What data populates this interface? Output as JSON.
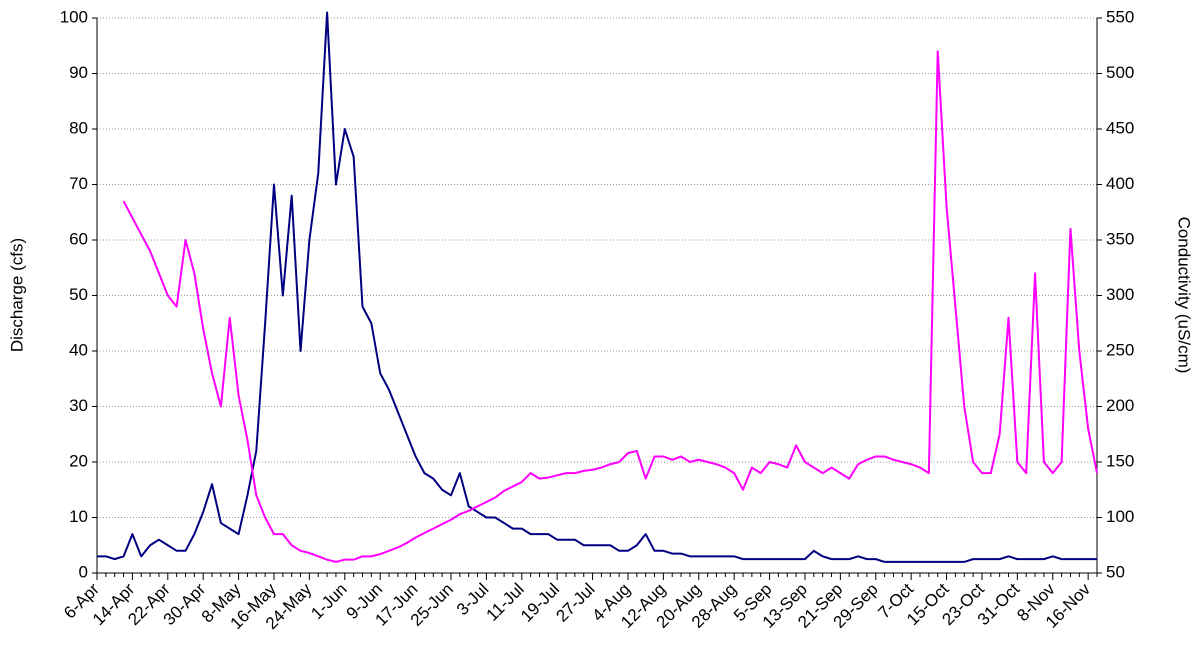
{
  "chart_data": {
    "type": "line",
    "y_label": "Discharge (cfs)",
    "y2_label": "Conductivity (uS/cm)",
    "categories": [
      "6-Apr",
      null,
      null,
      null,
      "14-Apr",
      null,
      null,
      null,
      "22-Apr",
      null,
      null,
      null,
      "30-Apr",
      null,
      null,
      null,
      "8-May",
      null,
      null,
      null,
      "16-May",
      null,
      null,
      null,
      "24-May",
      null,
      null,
      null,
      "1-Jun",
      null,
      null,
      null,
      "9-Jun",
      null,
      null,
      null,
      "17-Jun",
      null,
      null,
      null,
      "25-Jun",
      null,
      null,
      null,
      "3-Jul",
      null,
      null,
      null,
      "11-Jul",
      null,
      null,
      null,
      "19-Jul",
      null,
      null,
      null,
      "27-Jul",
      null,
      null,
      null,
      "4-Aug",
      null,
      null,
      null,
      "12-Aug",
      null,
      null,
      null,
      "20-Aug",
      null,
      null,
      null,
      "28-Aug",
      null,
      null,
      null,
      "5-Sep",
      null,
      null,
      null,
      "13-Sep",
      null,
      null,
      null,
      "21-Sep",
      null,
      null,
      null,
      "29-Sep",
      null,
      null,
      null,
      "7-Oct",
      null,
      null,
      null,
      "15-Oct",
      null,
      null,
      null,
      "23-Oct",
      null,
      null,
      null,
      "31-Oct",
      null,
      null,
      null,
      "8-Nov",
      null,
      null,
      null,
      "16-Nov",
      null
    ],
    "series": [
      {
        "name": "Discharge",
        "color": "#000080",
        "axis": "y",
        "values": [
          3,
          3,
          2.5,
          3,
          7,
          3,
          5,
          6,
          5,
          4,
          4,
          7,
          11,
          16,
          9,
          8,
          7,
          14,
          22,
          45,
          70,
          50,
          68,
          40,
          60,
          72,
          101,
          70,
          80,
          75,
          48,
          45,
          36,
          33,
          29,
          25,
          21,
          18,
          17,
          15,
          14,
          18,
          12,
          11,
          10,
          10,
          9,
          8,
          8,
          7,
          7,
          7,
          6,
          6,
          6,
          5,
          5,
          5,
          5,
          4,
          4,
          5,
          7,
          4,
          4,
          3.5,
          3.5,
          3,
          3,
          3,
          3,
          3,
          3,
          2.5,
          2.5,
          2.5,
          2.5,
          2.5,
          2.5,
          2.5,
          2.5,
          4,
          3,
          2.5,
          2.5,
          2.5,
          3,
          2.5,
          2.5,
          2,
          2,
          2,
          2,
          2,
          2,
          2,
          2,
          2,
          2,
          2.5,
          2.5,
          2.5,
          2.5,
          3,
          2.5,
          2.5,
          2.5,
          2.5,
          3,
          2.5,
          2.5,
          2.5,
          2.5,
          2.5
        ]
      },
      {
        "name": "Conductivity",
        "color": "#ff00ff",
        "axis": "y2",
        "values": [
          null,
          null,
          null,
          385,
          370,
          355,
          340,
          320,
          300,
          290,
          350,
          320,
          270,
          230,
          200,
          280,
          210,
          170,
          120,
          100,
          85,
          85,
          75,
          70,
          68,
          65,
          62,
          60,
          62,
          62,
          65,
          65,
          67,
          70,
          73,
          77,
          82,
          86,
          90,
          94,
          98,
          103,
          106,
          110,
          114,
          118,
          124,
          128,
          132,
          140,
          135,
          136,
          138,
          140,
          140,
          142,
          143,
          145,
          148,
          150,
          158,
          160,
          135,
          155,
          155,
          152,
          155,
          150,
          152,
          150,
          148,
          145,
          140,
          125,
          145,
          140,
          150,
          148,
          145,
          165,
          150,
          145,
          140,
          145,
          140,
          135,
          148,
          152,
          155,
          155,
          152,
          150,
          148,
          145,
          140,
          520,
          380,
          290,
          200,
          150,
          140,
          140,
          175,
          280,
          150,
          140,
          320,
          150,
          140,
          150,
          360,
          250,
          180,
          140
        ]
      }
    ],
    "ylim": [
      0,
      100
    ],
    "yticks": [
      0,
      10,
      20,
      30,
      40,
      50,
      60,
      70,
      80,
      90,
      100
    ],
    "y2lim": [
      50,
      550
    ],
    "y2ticks": [
      50,
      100,
      150,
      200,
      250,
      300,
      350,
      400,
      450,
      500,
      550
    ],
    "grid": true
  }
}
